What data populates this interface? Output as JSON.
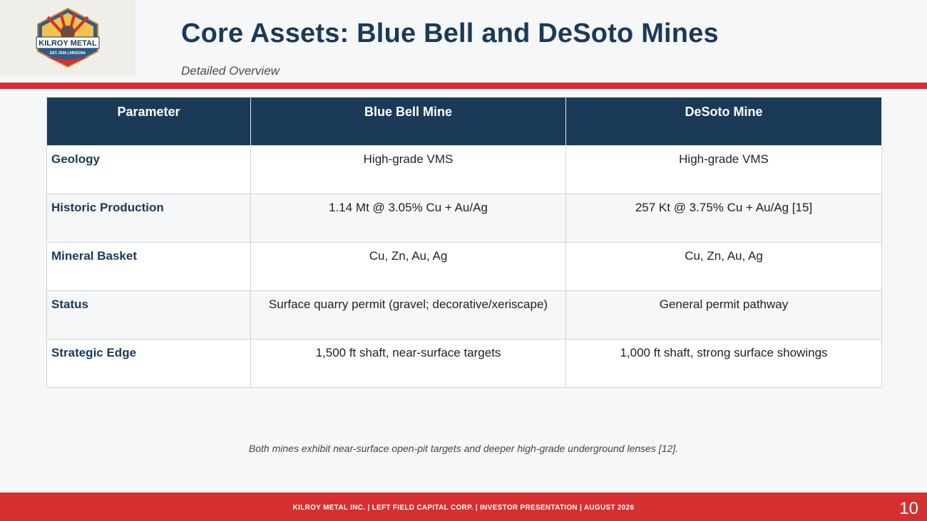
{
  "header": {
    "title": "Core Assets: Blue Bell and DeSoto Mines",
    "subtitle": "Detailed Overview",
    "logo": {
      "name": "KILROY METAL",
      "tagline": "EST. 2026 | ARIZONA"
    }
  },
  "table": {
    "columns": [
      "Parameter",
      "Blue Bell Mine",
      "DeSoto Mine"
    ],
    "rows": [
      {
        "parameter": "Geology",
        "blue_bell": "High-grade VMS",
        "desoto": "High-grade VMS"
      },
      {
        "parameter": "Historic Production",
        "blue_bell": "1.14 Mt @ 3.05% Cu + Au/Ag",
        "desoto": "257 Kt @ 3.75% Cu + Au/Ag [15]"
      },
      {
        "parameter": "Mineral Basket",
        "blue_bell": "Cu, Zn, Au, Ag",
        "desoto": "Cu, Zn, Au, Ag"
      },
      {
        "parameter": "Status",
        "blue_bell": "Surface quarry permit (gravel; decorative/xeriscape)",
        "desoto": "General permit pathway"
      },
      {
        "parameter": "Strategic Edge",
        "blue_bell": "1,500 ft shaft, near-surface targets",
        "desoto": "1,000 ft shaft, strong surface showings"
      }
    ]
  },
  "footnote": "Both mines exhibit near-surface open-pit targets and deeper high-grade underground lenses [12].",
  "footer": {
    "text": "KILROY METAL INC. | LEFT FIELD CAPITAL CORP. | INVESTOR PRESENTATION | AUGUST 2026",
    "page_number": "10"
  },
  "colors": {
    "navy": "#1b3a57",
    "red": "#d62f2f"
  }
}
